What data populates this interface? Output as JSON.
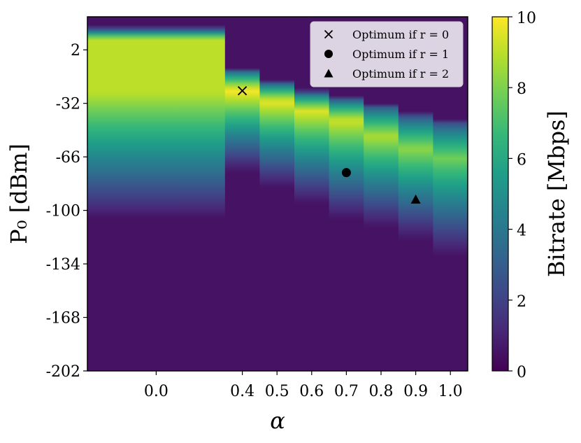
{
  "chart_data": {
    "type": "heatmap",
    "title": "",
    "xlabel": "α",
    "ylabel": "P₀ [dBm]",
    "colorbar_label": "Bitrate [Mbps]",
    "colorbar_ticks": [
      "0",
      "2",
      "4",
      "6",
      "8",
      "10"
    ],
    "colorbar_range": [
      0,
      10
    ],
    "colormap": "viridis",
    "x_categories": [
      "0.0",
      "0.4",
      "0.5",
      "0.6",
      "0.7",
      "0.8",
      "0.9",
      "1.0"
    ],
    "y_ticks": [
      "2",
      "-32",
      "-66",
      "-100",
      "-134",
      "-168",
      "-202"
    ],
    "y_tick_values": [
      2,
      -32,
      -66,
      -100,
      -134,
      -168,
      -202
    ],
    "ylim": [
      -202,
      23
    ],
    "columns": [
      {
        "alpha": "0.0",
        "peak_p0": 0,
        "peak_bitrate": 9.0,
        "upper_cut": 17,
        "lower_cut": -105,
        "plateau": true
      },
      {
        "alpha": "0.4",
        "peak_p0": -24,
        "peak_bitrate": 10.0,
        "upper_cut": -10,
        "lower_cut": -75
      },
      {
        "alpha": "0.5",
        "peak_p0": -31,
        "peak_bitrate": 9.7,
        "upper_cut": -18,
        "lower_cut": -85
      },
      {
        "alpha": "0.6",
        "peak_p0": -37,
        "peak_bitrate": 9.5,
        "upper_cut": -24,
        "lower_cut": -95
      },
      {
        "alpha": "0.7",
        "peak_p0": -43,
        "peak_bitrate": 9.3,
        "upper_cut": -28,
        "lower_cut": -105
      },
      {
        "alpha": "0.8",
        "peak_p0": -53,
        "peak_bitrate": 8.8,
        "upper_cut": -32,
        "lower_cut": -110
      },
      {
        "alpha": "0.9",
        "peak_p0": -61,
        "peak_bitrate": 8.3,
        "upper_cut": -38,
        "lower_cut": -118
      },
      {
        "alpha": "1.0",
        "peak_p0": -67,
        "peak_bitrate": 7.8,
        "upper_cut": -42,
        "lower_cut": -128
      }
    ],
    "markers": [
      {
        "label": "Optimum if r = 0",
        "symbol": "x",
        "alpha": "0.4",
        "p0": -24
      },
      {
        "label": "Optimum if r = 1",
        "symbol": "circle",
        "alpha": "0.7",
        "p0": -76
      },
      {
        "label": "Optimum if r = 2",
        "symbol": "triangle",
        "alpha": "0.9",
        "p0": -93
      }
    ],
    "legend_placement": "top-right",
    "grid": false
  }
}
